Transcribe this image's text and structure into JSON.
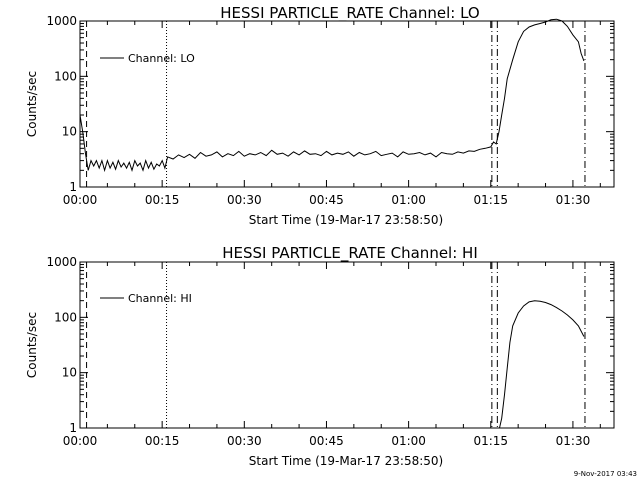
{
  "chart_data": [
    {
      "type": "line",
      "title": "HESSI PARTICLE_RATE Channel: LO",
      "xlabel": "Start Time (19-Mar-17 23:58:50)",
      "ylabel": "Counts/sec",
      "yscale": "log",
      "ylim": [
        1,
        1000
      ],
      "xlim_minutes": [
        0,
        97.5
      ],
      "x_tick_labels": [
        "00:00",
        "00:15",
        "00:30",
        "00:45",
        "01:00",
        "01:15",
        "01:30"
      ],
      "x_tick_minutes": [
        0,
        15,
        30,
        45,
        60,
        75,
        90
      ],
      "y_tick_labels": [
        "1",
        "10",
        "100",
        "1000"
      ],
      "y_tick_values": [
        1,
        10,
        100,
        1000
      ],
      "legend": {
        "position": "top-left",
        "entries": [
          "Channel: LO"
        ]
      },
      "grid": false,
      "series": [
        {
          "name": "Channel: LO",
          "x_minutes": [
            0,
            0.5,
            1,
            1.5,
            2,
            2.5,
            3,
            3.5,
            4,
            4.5,
            5,
            5.5,
            6,
            6.5,
            7,
            7.5,
            8,
            8.5,
            9,
            9.5,
            10,
            10.5,
            11,
            11.5,
            12,
            12.5,
            13,
            13.5,
            14,
            14.5,
            15,
            15.5,
            16,
            17,
            18,
            19,
            20,
            21,
            22,
            23,
            24,
            25,
            26,
            27,
            28,
            29,
            30,
            31,
            32,
            33,
            34,
            35,
            36,
            37,
            38,
            39,
            40,
            41,
            42,
            43,
            44,
            45,
            46,
            47,
            48,
            49,
            50,
            51,
            52,
            53,
            54,
            55,
            56,
            57,
            58,
            59,
            60,
            61,
            62,
            63,
            64,
            65,
            66,
            67,
            68,
            69,
            70,
            71,
            72,
            73,
            74,
            75,
            75.5,
            76,
            76.5,
            77,
            77.5,
            78,
            79,
            80,
            81,
            82,
            83,
            84,
            85,
            86,
            87,
            88,
            89,
            90,
            91,
            91.5,
            92
          ],
          "values": [
            20,
            10,
            4,
            2,
            3,
            2.4,
            3,
            2.2,
            3,
            2,
            3,
            2.2,
            2.8,
            2.1,
            3,
            2.3,
            2.7,
            2.2,
            2.8,
            2,
            3,
            2.4,
            2.7,
            2,
            3,
            2.2,
            2.8,
            2.1,
            2.6,
            2.4,
            3,
            2.2,
            3.5,
            3.2,
            3.8,
            3.4,
            3.9,
            3.3,
            4.2,
            3.6,
            3.8,
            4.3,
            3.5,
            4,
            3.7,
            4.4,
            3.6,
            4,
            3.8,
            4.2,
            3.7,
            4.6,
            3.9,
            4.1,
            3.6,
            4.3,
            3.8,
            4.5,
            3.9,
            4,
            3.7,
            4.4,
            3.8,
            4.1,
            3.9,
            4.3,
            3.6,
            4.2,
            3.8,
            4,
            4.4,
            3.7,
            3.9,
            4.1,
            3.5,
            4.3,
            3.9,
            4,
            4.2,
            3.8,
            4.1,
            3.5,
            4.2,
            4,
            3.9,
            4.3,
            4.1,
            4.5,
            4.4,
            4.8,
            5,
            5.3,
            6.5,
            6,
            10,
            20,
            40,
            90,
            200,
            420,
            650,
            780,
            850,
            900,
            960,
            1050,
            1080,
            1000,
            800,
            560,
            420,
            260,
            190
          ],
          "color": "#000000"
        }
      ],
      "markers": [
        {
          "minute": 1.2,
          "style": "dashed"
        },
        {
          "minute": 15.8,
          "style": "dotted"
        },
        {
          "minute": 75.2,
          "style": "dashdot"
        },
        {
          "minute": 76.2,
          "style": "dashdot"
        },
        {
          "minute": 92.2,
          "style": "dashdot"
        }
      ]
    },
    {
      "type": "line",
      "title": "HESSI PARTICLE_RATE Channel: HI",
      "xlabel": "Start Time (19-Mar-17 23:58:50)",
      "ylabel": "Counts/sec",
      "yscale": "log",
      "ylim": [
        1,
        1000
      ],
      "xlim_minutes": [
        0,
        97.5
      ],
      "x_tick_labels": [
        "00:00",
        "00:15",
        "00:30",
        "00:45",
        "01:00",
        "01:15",
        "01:30"
      ],
      "x_tick_minutes": [
        0,
        15,
        30,
        45,
        60,
        75,
        90
      ],
      "y_tick_labels": [
        "1",
        "10",
        "100",
        "1000"
      ],
      "y_tick_values": [
        1,
        10,
        100,
        1000
      ],
      "legend": {
        "position": "top-left",
        "entries": [
          "Channel: HI"
        ]
      },
      "grid": false,
      "series": [
        {
          "name": "Channel: HI",
          "x_minutes": [
            76.6,
            77,
            77.5,
            78,
            78.5,
            79,
            80,
            81,
            82,
            83,
            84,
            85,
            86,
            87,
            88,
            89,
            90,
            91,
            92
          ],
          "values": [
            1,
            1.5,
            4,
            12,
            35,
            70,
            120,
            160,
            190,
            200,
            195,
            185,
            170,
            150,
            130,
            110,
            90,
            70,
            45
          ],
          "color": "#000000"
        }
      ],
      "markers": [
        {
          "minute": 1.2,
          "style": "dashed"
        },
        {
          "minute": 15.8,
          "style": "dotted"
        },
        {
          "minute": 75.2,
          "style": "dashdot"
        },
        {
          "minute": 76.2,
          "style": "dashdot"
        },
        {
          "minute": 92.2,
          "style": "dashdot"
        }
      ]
    }
  ],
  "footer": {
    "stamp": "9-Nov-2017 03:43"
  }
}
